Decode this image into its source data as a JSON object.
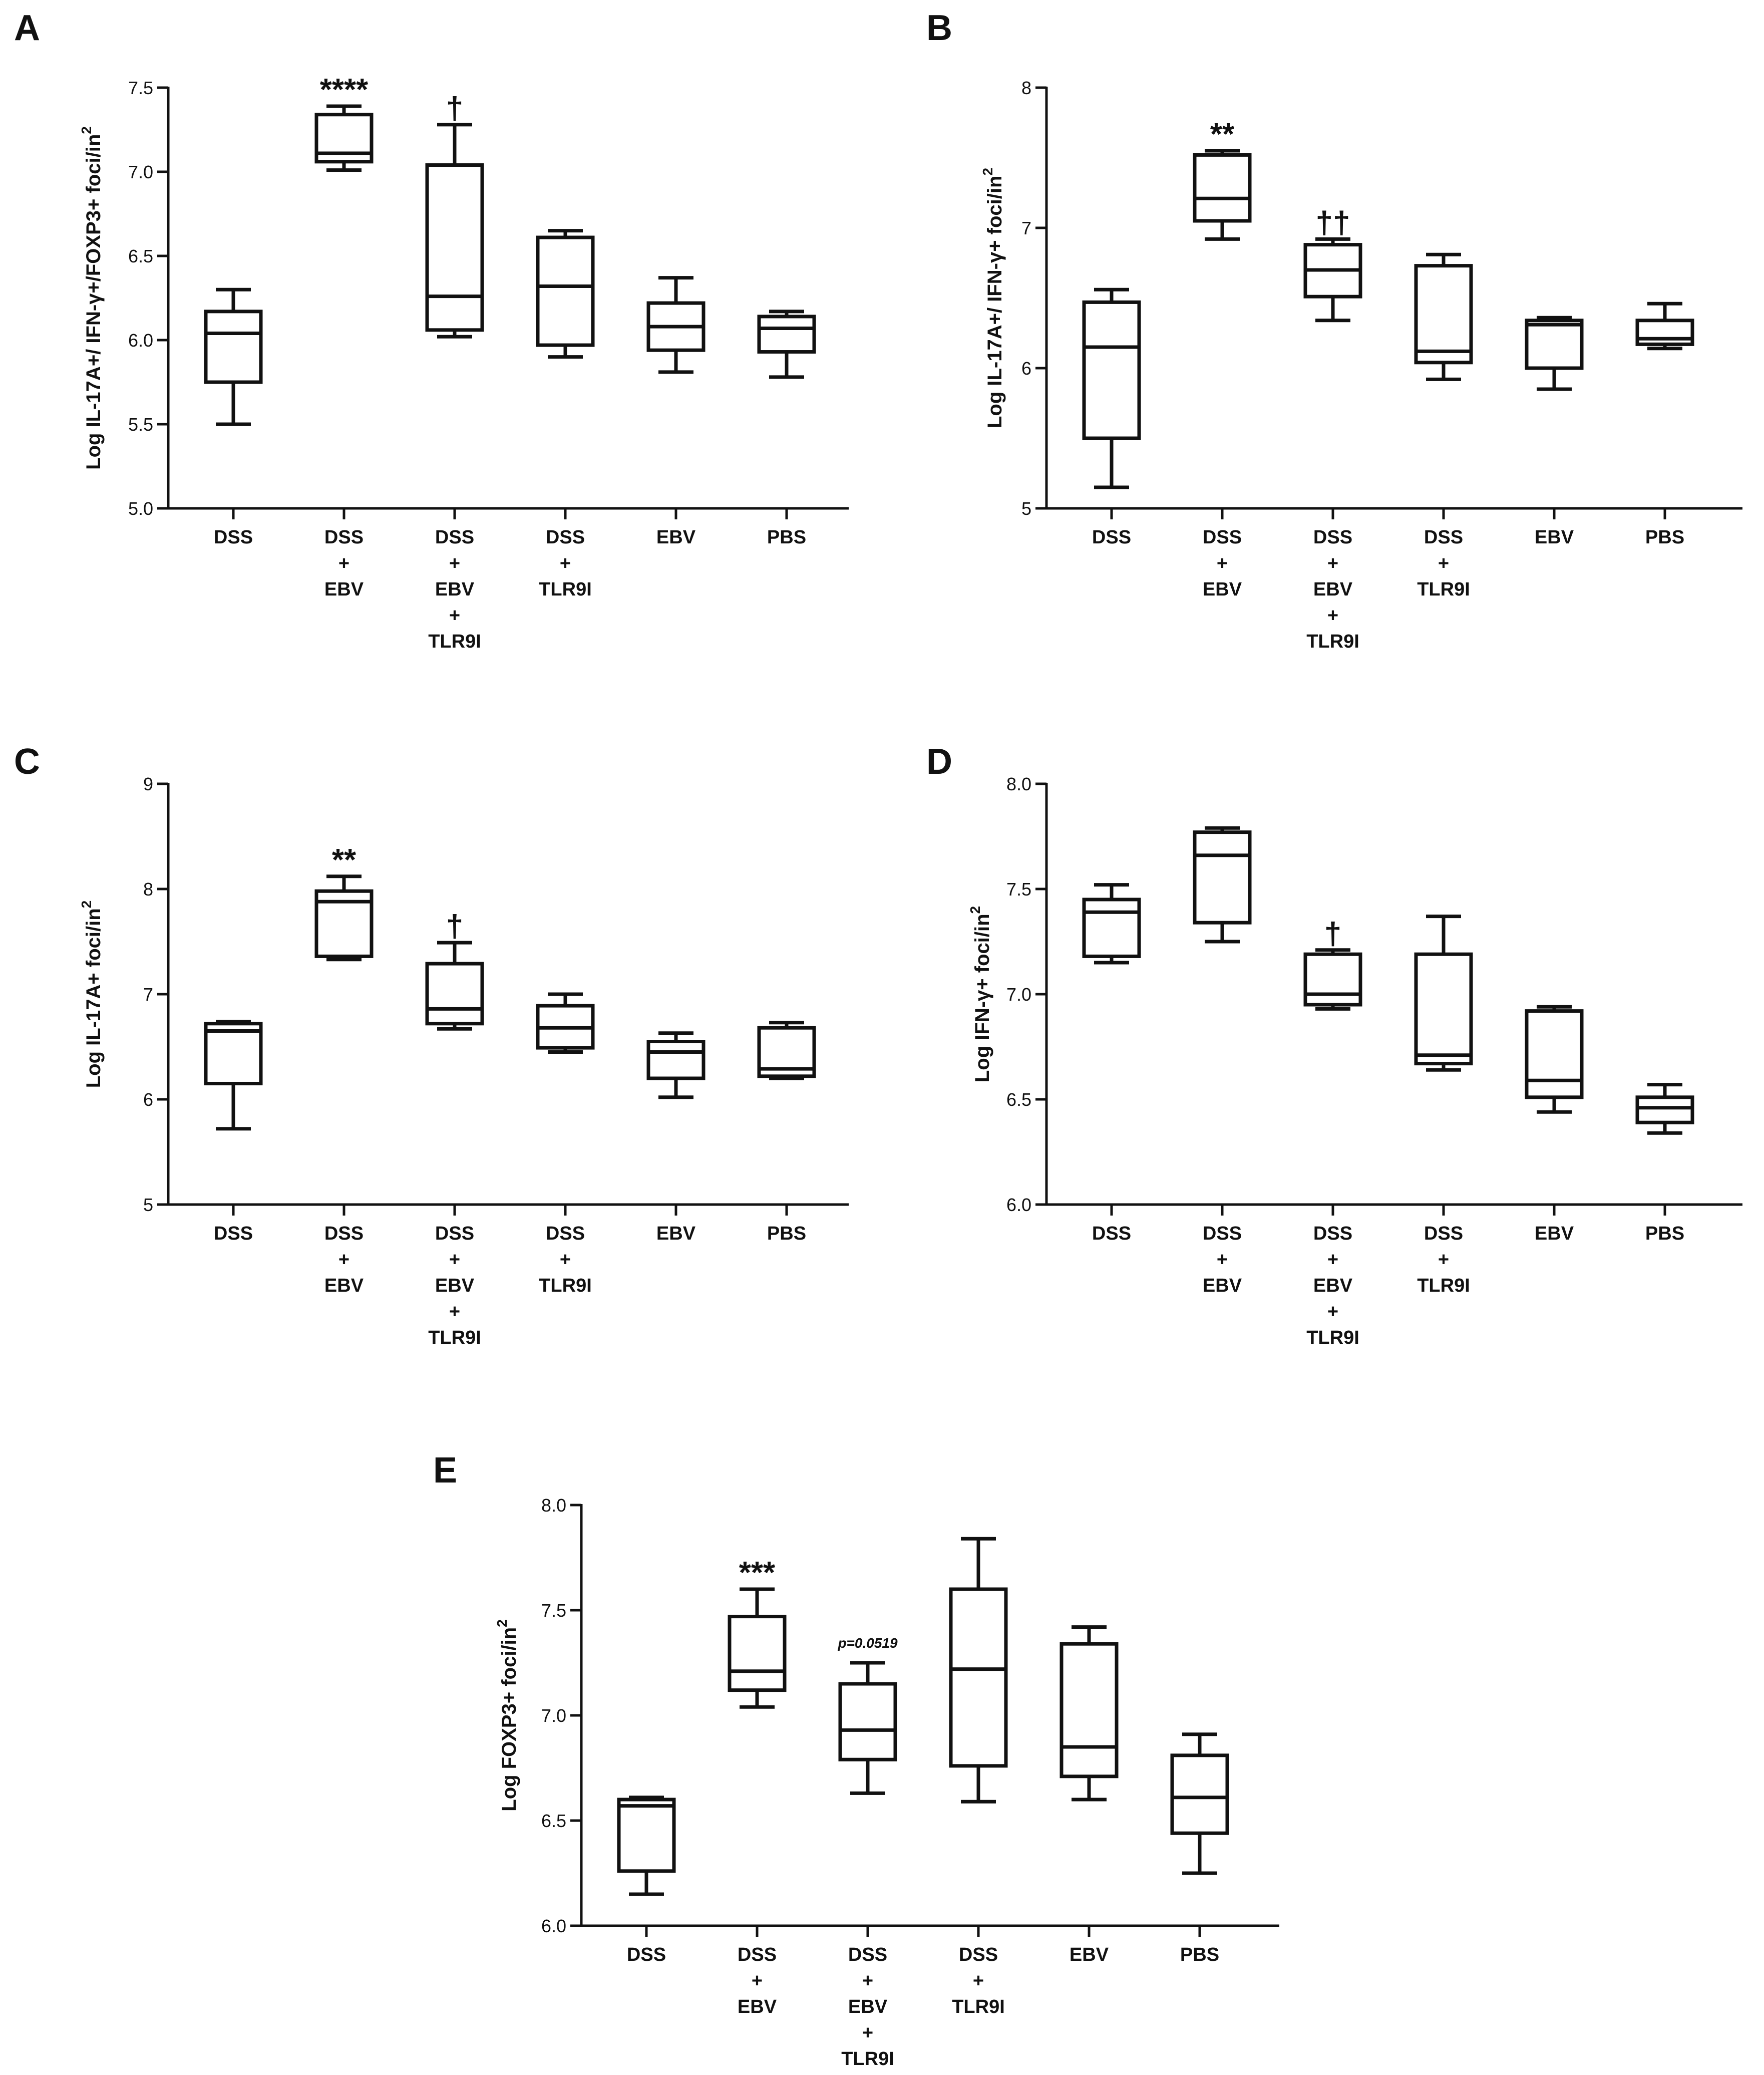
{
  "figure": {
    "colors": {
      "ink": "#111111",
      "background": "#ffffff"
    },
    "chart_data": [
      {
        "type": "box",
        "panel": "A",
        "ylabel": "Log IL-17A+/ IFN-γ+/FOXP3+ foci/in",
        "ylabel_sup": "2",
        "ylim": [
          5.0,
          7.5
        ],
        "yticks": [
          "5.0",
          "5.5",
          "6.0",
          "6.5",
          "7.0",
          "7.5"
        ],
        "categories": [
          {
            "lines": [
              "DSS"
            ]
          },
          {
            "lines": [
              "DSS",
              "+",
              "EBV"
            ]
          },
          {
            "lines": [
              "DSS",
              "+",
              "EBV",
              "+",
              "TLR9I"
            ]
          },
          {
            "lines": [
              "DSS",
              "+",
              "TLR9I"
            ]
          },
          {
            "lines": [
              "EBV"
            ]
          },
          {
            "lines": [
              "PBS"
            ]
          }
        ],
        "boxes": [
          {
            "min": 5.5,
            "q1": 5.75,
            "median": 6.04,
            "q3": 6.17,
            "max": 6.3,
            "annotation": ""
          },
          {
            "min": 7.01,
            "q1": 7.06,
            "median": 7.11,
            "q3": 7.34,
            "max": 7.39,
            "annotation": "****"
          },
          {
            "min": 6.02,
            "q1": 6.06,
            "median": 6.26,
            "q3": 7.04,
            "max": 7.28,
            "annotation": "†"
          },
          {
            "min": 5.9,
            "q1": 5.97,
            "median": 6.32,
            "q3": 6.61,
            "max": 6.65,
            "annotation": ""
          },
          {
            "min": 5.81,
            "q1": 5.94,
            "median": 6.08,
            "q3": 6.22,
            "max": 6.37,
            "annotation": ""
          },
          {
            "min": 5.78,
            "q1": 5.93,
            "median": 6.07,
            "q3": 6.14,
            "max": 6.17,
            "annotation": ""
          }
        ]
      },
      {
        "type": "box",
        "panel": "B",
        "ylabel": "Log IL-17A+/ IFN-γ+ foci/in",
        "ylabel_sup": "2",
        "ylim": [
          5,
          8
        ],
        "yticks": [
          "5",
          "6",
          "7",
          "8"
        ],
        "categories": [
          {
            "lines": [
              "DSS"
            ]
          },
          {
            "lines": [
              "DSS",
              "+",
              "EBV"
            ]
          },
          {
            "lines": [
              "DSS",
              "+",
              "EBV",
              "+",
              "TLR9I"
            ]
          },
          {
            "lines": [
              "DSS",
              "+",
              "TLR9I"
            ]
          },
          {
            "lines": [
              "EBV"
            ]
          },
          {
            "lines": [
              "PBS"
            ]
          }
        ],
        "boxes": [
          {
            "min": 5.15,
            "q1": 5.5,
            "median": 6.15,
            "q3": 6.47,
            "max": 6.56,
            "annotation": ""
          },
          {
            "min": 6.92,
            "q1": 7.05,
            "median": 7.21,
            "q3": 7.52,
            "max": 7.55,
            "annotation": "**"
          },
          {
            "min": 6.34,
            "q1": 6.51,
            "median": 6.7,
            "q3": 6.88,
            "max": 6.92,
            "annotation": "††"
          },
          {
            "min": 5.92,
            "q1": 6.04,
            "median": 6.12,
            "q3": 6.73,
            "max": 6.81,
            "annotation": ""
          },
          {
            "min": 5.85,
            "q1": 6.0,
            "median": 6.31,
            "q3": 6.34,
            "max": 6.36,
            "annotation": ""
          },
          {
            "min": 6.14,
            "q1": 6.17,
            "median": 6.21,
            "q3": 6.34,
            "max": 6.46,
            "annotation": ""
          }
        ]
      },
      {
        "type": "box",
        "panel": "C",
        "ylabel": "Log IL-17A+ foci/in",
        "ylabel_sup": "2",
        "ylim": [
          5,
          9
        ],
        "yticks": [
          "5",
          "6",
          "7",
          "8",
          "9"
        ],
        "categories": [
          {
            "lines": [
              "DSS"
            ]
          },
          {
            "lines": [
              "DSS",
              "+",
              "EBV"
            ]
          },
          {
            "lines": [
              "DSS",
              "+",
              "EBV",
              "+",
              "TLR9I"
            ]
          },
          {
            "lines": [
              "DSS",
              "+",
              "TLR9I"
            ]
          },
          {
            "lines": [
              "EBV"
            ]
          },
          {
            "lines": [
              "PBS"
            ]
          }
        ],
        "boxes": [
          {
            "min": 5.72,
            "q1": 6.15,
            "median": 6.65,
            "q3": 6.72,
            "max": 6.74,
            "annotation": ""
          },
          {
            "min": 7.33,
            "q1": 7.36,
            "median": 7.88,
            "q3": 7.98,
            "max": 8.12,
            "annotation": "**"
          },
          {
            "min": 6.67,
            "q1": 6.72,
            "median": 6.86,
            "q3": 7.29,
            "max": 7.49,
            "annotation": "†"
          },
          {
            "min": 6.45,
            "q1": 6.49,
            "median": 6.68,
            "q3": 6.89,
            "max": 7.0,
            "annotation": ""
          },
          {
            "min": 6.02,
            "q1": 6.2,
            "median": 6.45,
            "q3": 6.55,
            "max": 6.63,
            "annotation": ""
          },
          {
            "min": 6.2,
            "q1": 6.22,
            "median": 6.29,
            "q3": 6.68,
            "max": 6.73,
            "annotation": ""
          }
        ]
      },
      {
        "type": "box",
        "panel": "D",
        "ylabel": "Log IFN-γ+ foci/in",
        "ylabel_sup": "2",
        "ylim": [
          6.0,
          8.0
        ],
        "yticks": [
          "6.0",
          "6.5",
          "7.0",
          "7.5",
          "8.0"
        ],
        "categories": [
          {
            "lines": [
              "DSS"
            ]
          },
          {
            "lines": [
              "DSS",
              "+",
              "EBV"
            ]
          },
          {
            "lines": [
              "DSS",
              "+",
              "EBV",
              "+",
              "TLR9I"
            ]
          },
          {
            "lines": [
              "DSS",
              "+",
              "TLR9I"
            ]
          },
          {
            "lines": [
              "EBV"
            ]
          },
          {
            "lines": [
              "PBS"
            ]
          }
        ],
        "boxes": [
          {
            "min": 7.15,
            "q1": 7.18,
            "median": 7.39,
            "q3": 7.45,
            "max": 7.52,
            "annotation": ""
          },
          {
            "min": 7.25,
            "q1": 7.34,
            "median": 7.66,
            "q3": 7.77,
            "max": 7.79,
            "annotation": ""
          },
          {
            "min": 6.93,
            "q1": 6.95,
            "median": 7.0,
            "q3": 7.19,
            "max": 7.21,
            "annotation": "†"
          },
          {
            "min": 6.64,
            "q1": 6.67,
            "median": 6.71,
            "q3": 7.19,
            "max": 7.37,
            "annotation": ""
          },
          {
            "min": 6.44,
            "q1": 6.51,
            "median": 6.59,
            "q3": 6.92,
            "max": 6.94,
            "annotation": ""
          },
          {
            "min": 6.34,
            "q1": 6.39,
            "median": 6.46,
            "q3": 6.51,
            "max": 6.57,
            "annotation": ""
          }
        ]
      },
      {
        "type": "box",
        "panel": "E",
        "ylabel": "Log FOXP3+ foci/in",
        "ylabel_sup": "2",
        "ylim": [
          6.0,
          8.0
        ],
        "yticks": [
          "6.0",
          "6.5",
          "7.0",
          "7.5",
          "8.0"
        ],
        "categories": [
          {
            "lines": [
              "DSS"
            ]
          },
          {
            "lines": [
              "DSS",
              "+",
              "EBV"
            ]
          },
          {
            "lines": [
              "DSS",
              "+",
              "EBV",
              "+",
              "TLR9I"
            ]
          },
          {
            "lines": [
              "DSS",
              "+",
              "TLR9I"
            ]
          },
          {
            "lines": [
              "EBV"
            ]
          },
          {
            "lines": [
              "PBS"
            ]
          }
        ],
        "boxes": [
          {
            "min": 6.15,
            "q1": 6.26,
            "median": 6.57,
            "q3": 6.6,
            "max": 6.61,
            "annotation": ""
          },
          {
            "min": 7.04,
            "q1": 7.12,
            "median": 7.21,
            "q3": 7.47,
            "max": 7.6,
            "annotation": "***"
          },
          {
            "min": 6.63,
            "q1": 6.79,
            "median": 6.93,
            "q3": 7.15,
            "max": 7.25,
            "annotation": "p=0.0519",
            "annotation_style": "small-italic"
          },
          {
            "min": 6.59,
            "q1": 6.76,
            "median": 7.22,
            "q3": 7.6,
            "max": 7.84,
            "annotation": ""
          },
          {
            "min": 6.6,
            "q1": 6.71,
            "median": 6.85,
            "q3": 7.34,
            "max": 7.42,
            "annotation": ""
          },
          {
            "min": 6.25,
            "q1": 6.44,
            "median": 6.61,
            "q3": 6.81,
            "max": 6.91,
            "annotation": ""
          }
        ]
      }
    ]
  }
}
